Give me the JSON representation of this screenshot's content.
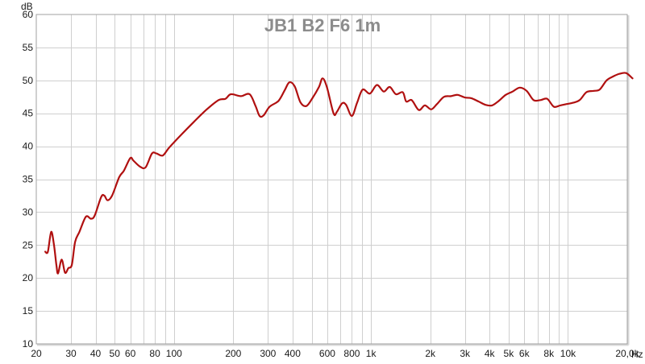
{
  "chart_data": {
    "type": "line",
    "title": "JB1 B2 F6 1m",
    "ylabel": "dB",
    "xlabel": "Hz",
    "x_scale": "log",
    "xlim": [
      20,
      20000
    ],
    "ylim": [
      10,
      60
    ],
    "grid": true,
    "y_ticks": [
      10,
      15,
      20,
      25,
      30,
      35,
      40,
      45,
      50,
      55,
      60
    ],
    "x_ticks": [
      {
        "value": 20,
        "label": "20"
      },
      {
        "value": 30,
        "label": "30"
      },
      {
        "value": 40,
        "label": "40"
      },
      {
        "value": 50,
        "label": "50"
      },
      {
        "value": 60,
        "label": "60"
      },
      {
        "value": 80,
        "label": "80"
      },
      {
        "value": 100,
        "label": "100"
      },
      {
        "value": 200,
        "label": "200"
      },
      {
        "value": 300,
        "label": "300"
      },
      {
        "value": 400,
        "label": "400"
      },
      {
        "value": 600,
        "label": "600"
      },
      {
        "value": 800,
        "label": "800"
      },
      {
        "value": 1000,
        "label": "1k"
      },
      {
        "value": 2000,
        "label": "2k"
      },
      {
        "value": 3000,
        "label": "3k"
      },
      {
        "value": 4000,
        "label": "4k"
      },
      {
        "value": 5000,
        "label": "5k"
      },
      {
        "value": 6000,
        "label": "6k"
      },
      {
        "value": 8000,
        "label": "8k"
      },
      {
        "value": 10000,
        "label": "10k"
      },
      {
        "value": 20000,
        "label": "20,0k"
      }
    ],
    "series": [
      {
        "color": "#b01010",
        "points": [
          [
            22.2,
            24.0
          ],
          [
            22.9,
            24.0
          ],
          [
            23.8,
            27.0
          ],
          [
            24.6,
            25.0
          ],
          [
            25.3,
            22.0
          ],
          [
            25.8,
            20.7
          ],
          [
            26.9,
            22.8
          ],
          [
            28.0,
            20.8
          ],
          [
            29.1,
            21.5
          ],
          [
            30.3,
            22.0
          ],
          [
            31.5,
            25.5
          ],
          [
            33.1,
            27.0
          ],
          [
            35.7,
            29.3
          ],
          [
            37.9,
            29.0
          ],
          [
            39.6,
            29.5
          ],
          [
            42.7,
            32.3
          ],
          [
            44.3,
            32.5
          ],
          [
            46.0,
            31.8
          ],
          [
            48.5,
            32.5
          ],
          [
            52.7,
            35.3
          ],
          [
            55.7,
            36.3
          ],
          [
            60.0,
            38.2
          ],
          [
            62.3,
            37.8
          ],
          [
            67.3,
            36.9
          ],
          [
            71.8,
            36.8
          ],
          [
            77.3,
            38.9
          ],
          [
            81.5,
            38.9
          ],
          [
            87.7,
            38.6
          ],
          [
            94.6,
            39.8
          ],
          [
            109.3,
            41.8
          ],
          [
            126.2,
            43.7
          ],
          [
            145.6,
            45.5
          ],
          [
            168.3,
            47.0
          ],
          [
            182.4,
            47.2
          ],
          [
            194.5,
            47.9
          ],
          [
            218.4,
            47.6
          ],
          [
            242.0,
            47.9
          ],
          [
            259.5,
            46.1
          ],
          [
            272.0,
            44.6
          ],
          [
            285.2,
            44.7
          ],
          [
            305.8,
            46.0
          ],
          [
            339.5,
            46.9
          ],
          [
            364.7,
            48.5
          ],
          [
            385.0,
            49.7
          ],
          [
            409.9,
            49.1
          ],
          [
            437.8,
            46.7
          ],
          [
            469.6,
            46.1
          ],
          [
            504.5,
            47.3
          ],
          [
            544.4,
            49.0
          ],
          [
            567.8,
            50.3
          ],
          [
            597.2,
            49.0
          ],
          [
            645.7,
            45.0
          ],
          [
            670.7,
            45.2
          ],
          [
            712.6,
            46.5
          ],
          [
            747.1,
            46.3
          ],
          [
            800.0,
            44.6
          ],
          [
            850.0,
            46.6
          ],
          [
            907.1,
            48.6
          ],
          [
            987.5,
            48.0
          ],
          [
            1072,
            49.3
          ],
          [
            1161,
            48.3
          ],
          [
            1245,
            49.0
          ],
          [
            1339,
            47.9
          ],
          [
            1450,
            48.2
          ],
          [
            1510,
            46.8
          ],
          [
            1610,
            47.0
          ],
          [
            1749,
            45.5
          ],
          [
            1877,
            46.2
          ],
          [
            2021,
            45.6
          ],
          [
            2163,
            46.4
          ],
          [
            2347,
            47.5
          ],
          [
            2552,
            47.6
          ],
          [
            2751,
            47.8
          ],
          [
            2996,
            47.4
          ],
          [
            3229,
            47.3
          ],
          [
            3516,
            46.8
          ],
          [
            3807,
            46.3
          ],
          [
            4117,
            46.2
          ],
          [
            4457,
            46.9
          ],
          [
            4830,
            47.8
          ],
          [
            5237,
            48.3
          ],
          [
            5694,
            48.9
          ],
          [
            6174,
            48.4
          ],
          [
            6692,
            47.0
          ],
          [
            7246,
            47.0
          ],
          [
            7843,
            47.2
          ],
          [
            8472,
            46.0
          ],
          [
            9135,
            46.2
          ],
          [
            9843,
            46.4
          ],
          [
            10610,
            46.6
          ],
          [
            11459,
            47.0
          ],
          [
            12399,
            48.2
          ],
          [
            13416,
            48.4
          ],
          [
            14474,
            48.6
          ],
          [
            15709,
            50.0
          ],
          [
            16978,
            50.6
          ],
          [
            18283,
            51.0
          ],
          [
            19770,
            51.1
          ],
          [
            21270,
            50.3
          ]
        ]
      }
    ]
  }
}
